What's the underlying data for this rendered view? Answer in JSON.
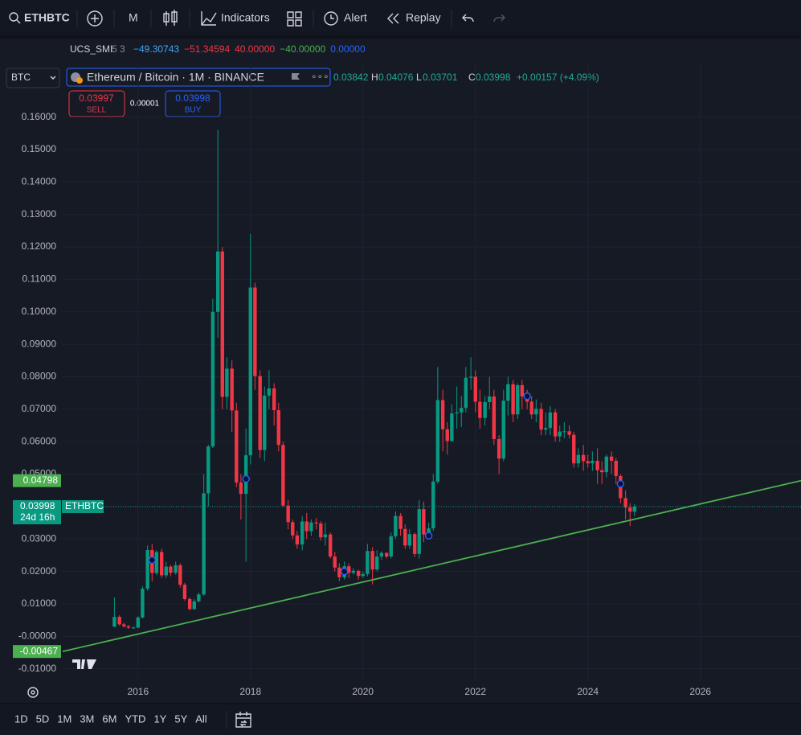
{
  "toolbar": {
    "symbol": "ETHBTC",
    "interval": "M",
    "indicators": "Indicators",
    "alert": "Alert",
    "replay": "Replay"
  },
  "indicator": {
    "name": "UCS_SMI",
    "params": "5 3",
    "values": [
      "−49.30743",
      "−51.34594",
      "40.00000",
      "−40.00000",
      "0.00000"
    ],
    "colors": [
      "#42a5f5",
      "#f23645",
      "#f23645",
      "#4caf50",
      "#2962ff"
    ]
  },
  "symbol_row": {
    "currency": "BTC",
    "title": "Ethereum / Bitcoin · 1M · BINANCE",
    "open": "0.03842",
    "high_label": "H",
    "high": "0.04076",
    "low_label": "L",
    "low": "0.03701",
    "close_label": "C",
    "close": "0.03998",
    "change": "+0.00157 (+4.09%)"
  },
  "trade": {
    "sell_price": "0.03997",
    "sell": "SELL",
    "spread": "0.00001",
    "buy_price": "0.03998",
    "buy": "BUY"
  },
  "chart_data": {
    "type": "candlestick",
    "x": [
      2015.58,
      2015.67,
      2015.75,
      2015.83,
      2015.92,
      2016.0,
      2016.08,
      2016.17,
      2016.25,
      2016.33,
      2016.42,
      2016.5,
      2016.58,
      2016.67,
      2016.75,
      2016.83,
      2016.92,
      2017.0,
      2017.08,
      2017.17,
      2017.25,
      2017.33,
      2017.42,
      2017.5,
      2017.58,
      2017.67,
      2017.75,
      2017.83,
      2017.92,
      2018.0,
      2018.08,
      2018.17,
      2018.25,
      2018.33,
      2018.42,
      2018.5,
      2018.58,
      2018.67,
      2018.75,
      2018.83,
      2018.92,
      2019.0,
      2019.08,
      2019.17,
      2019.25,
      2019.33,
      2019.42,
      2019.5,
      2019.58,
      2019.67,
      2019.75,
      2019.83,
      2019.92,
      2020.0,
      2020.08,
      2020.17,
      2020.25,
      2020.33,
      2020.42,
      2020.5,
      2020.58,
      2020.67,
      2020.75,
      2020.83,
      2020.92,
      2021.0,
      2021.08,
      2021.17,
      2021.25,
      2021.33,
      2021.42,
      2021.5,
      2021.58,
      2021.67,
      2021.75,
      2021.83,
      2021.92,
      2022.0,
      2022.08,
      2022.17,
      2022.25,
      2022.33,
      2022.42,
      2022.5,
      2022.58,
      2022.67,
      2022.75,
      2022.83,
      2022.92,
      2023.0,
      2023.08,
      2023.17,
      2023.25,
      2023.33,
      2023.42,
      2023.5,
      2023.58,
      2023.67,
      2023.75,
      2023.83,
      2023.92,
      2024.0,
      2024.08,
      2024.17,
      2024.25,
      2024.33,
      2024.42,
      2024.5,
      2024.58,
      2024.67,
      2024.75,
      2024.83
    ],
    "open": [
      0.003,
      0.006,
      0.0037,
      0.0031,
      0.0027,
      0.0027,
      0.0058,
      0.0147,
      0.0266,
      0.0195,
      0.026,
      0.0188,
      0.0215,
      0.0196,
      0.0219,
      0.0159,
      0.0115,
      0.0084,
      0.0108,
      0.0129,
      0.0441,
      0.0585,
      0.1,
      0.1186,
      0.0738,
      0.0825,
      0.0696,
      0.0474,
      0.0439,
      0.0558,
      0.1075,
      0.0802,
      0.0574,
      0.0742,
      0.0764,
      0.0697,
      0.059,
      0.0403,
      0.0352,
      0.0311,
      0.0283,
      0.0354,
      0.0324,
      0.0351,
      0.0348,
      0.0305,
      0.0314,
      0.0246,
      0.0212,
      0.0182,
      0.0216,
      0.0196,
      0.0202,
      0.0186,
      0.0192,
      0.0263,
      0.0206,
      0.0246,
      0.0257,
      0.0246,
      0.0308,
      0.0371,
      0.0331,
      0.028,
      0.0315,
      0.0254,
      0.0392,
      0.0314,
      0.0333,
      0.0477,
      0.0728,
      0.0638,
      0.0602,
      0.0687,
      0.069,
      0.0704,
      0.0797,
      0.08,
      0.0723,
      0.0673,
      0.0722,
      0.0739,
      0.0608,
      0.0548,
      0.0726,
      0.0777,
      0.0684,
      0.0774,
      0.0739,
      0.0723,
      0.0684,
      0.0701,
      0.0637,
      0.0642,
      0.069,
      0.0616,
      0.0631,
      0.0632,
      0.0621,
      0.0533,
      0.0559,
      0.054,
      0.0533,
      0.0541,
      0.0512,
      0.0506,
      0.0554,
      0.0541,
      0.0494,
      0.0426,
      0.0397,
      0.03842
    ],
    "high": [
      0.012,
      0.0065,
      0.0042,
      0.0035,
      0.0031,
      0.0062,
      0.0155,
      0.028,
      0.0285,
      0.0265,
      0.027,
      0.023,
      0.022,
      0.023,
      0.0225,
      0.0165,
      0.012,
      0.0115,
      0.0135,
      0.05,
      0.059,
      0.104,
      0.156,
      0.12,
      0.086,
      0.085,
      0.072,
      0.05,
      0.064,
      0.124,
      0.109,
      0.082,
      0.077,
      0.082,
      0.078,
      0.072,
      0.06,
      0.042,
      0.036,
      0.0325,
      0.037,
      0.038,
      0.036,
      0.0365,
      0.0355,
      0.035,
      0.032,
      0.026,
      0.0225,
      0.023,
      0.0225,
      0.021,
      0.0205,
      0.02,
      0.0285,
      0.0275,
      0.0265,
      0.0262,
      0.026,
      0.032,
      0.0385,
      0.038,
      0.0345,
      0.033,
      0.032,
      0.042,
      0.0415,
      0.035,
      0.05,
      0.083,
      0.076,
      0.066,
      0.0715,
      0.077,
      0.074,
      0.083,
      0.086,
      0.082,
      0.076,
      0.074,
      0.08,
      0.076,
      0.062,
      0.076,
      0.08,
      0.079,
      0.078,
      0.079,
      0.076,
      0.074,
      0.073,
      0.072,
      0.069,
      0.071,
      0.07,
      0.065,
      0.066,
      0.065,
      0.063,
      0.058,
      0.059,
      0.056,
      0.057,
      0.058,
      0.054,
      0.056,
      0.057,
      0.055,
      0.05,
      0.045,
      0.041,
      0.04076
    ],
    "low": [
      0.0028,
      0.0033,
      0.0027,
      0.0023,
      0.0023,
      0.0025,
      0.0055,
      0.014,
      0.017,
      0.019,
      0.018,
      0.018,
      0.0185,
      0.019,
      0.015,
      0.011,
      0.008,
      0.0082,
      0.0105,
      0.0125,
      0.04,
      0.058,
      0.092,
      0.07,
      0.07,
      0.063,
      0.046,
      0.036,
      0.023,
      0.053,
      0.076,
      0.055,
      0.054,
      0.07,
      0.065,
      0.057,
      0.04,
      0.033,
      0.03,
      0.027,
      0.0265,
      0.03,
      0.031,
      0.033,
      0.0295,
      0.028,
      0.024,
      0.02,
      0.017,
      0.0175,
      0.018,
      0.019,
      0.0175,
      0.018,
      0.0185,
      0.016,
      0.02,
      0.0235,
      0.024,
      0.024,
      0.03,
      0.031,
      0.027,
      0.027,
      0.0245,
      0.024,
      0.029,
      0.03,
      0.0325,
      0.047,
      0.057,
      0.056,
      0.06,
      0.064,
      0.0645,
      0.069,
      0.076,
      0.069,
      0.064,
      0.065,
      0.07,
      0.059,
      0.05,
      0.054,
      0.068,
      0.066,
      0.067,
      0.07,
      0.07,
      0.067,
      0.066,
      0.062,
      0.062,
      0.062,
      0.06,
      0.06,
      0.061,
      0.061,
      0.052,
      0.052,
      0.051,
      0.052,
      0.051,
      0.047,
      0.047,
      0.049,
      0.05,
      0.047,
      0.041,
      0.036,
      0.034,
      0.03701
    ],
    "close": [
      0.006,
      0.0037,
      0.0031,
      0.0027,
      0.0027,
      0.0058,
      0.0147,
      0.0266,
      0.0195,
      0.026,
      0.0188,
      0.0215,
      0.0196,
      0.0219,
      0.0159,
      0.0115,
      0.0084,
      0.0108,
      0.0129,
      0.0441,
      0.0585,
      0.1,
      0.1186,
      0.0738,
      0.0825,
      0.0696,
      0.0474,
      0.0439,
      0.0558,
      0.1075,
      0.0802,
      0.0574,
      0.0742,
      0.0764,
      0.0697,
      0.059,
      0.0403,
      0.0352,
      0.0311,
      0.0283,
      0.0354,
      0.0324,
      0.0351,
      0.0348,
      0.0305,
      0.0314,
      0.0246,
      0.0212,
      0.0182,
      0.0216,
      0.0196,
      0.0202,
      0.0186,
      0.0192,
      0.0263,
      0.0206,
      0.0246,
      0.0257,
      0.0246,
      0.0308,
      0.0371,
      0.0331,
      0.028,
      0.0315,
      0.0254,
      0.0392,
      0.0314,
      0.0333,
      0.0477,
      0.0728,
      0.0638,
      0.0602,
      0.0687,
      0.069,
      0.0704,
      0.0797,
      0.08,
      0.0723,
      0.0673,
      0.0722,
      0.0739,
      0.0608,
      0.0548,
      0.0726,
      0.0777,
      0.0684,
      0.0774,
      0.0739,
      0.0723,
      0.0684,
      0.0701,
      0.0637,
      0.0642,
      0.069,
      0.0616,
      0.0631,
      0.0632,
      0.0621,
      0.0533,
      0.0559,
      0.054,
      0.0533,
      0.0541,
      0.0512,
      0.0506,
      0.0554,
      0.0541,
      0.0494,
      0.0426,
      0.0397,
      0.03842,
      0.03998
    ],
    "up_color": "#089981",
    "down_color": "#f23645",
    "xlim": [
      2014.66,
      2027.79
    ],
    "xticks": [
      2016,
      2018,
      2020,
      2022,
      2024,
      2026
    ],
    "ylim": [
      -0.0133,
      0.1842
    ],
    "yticks": [
      {
        "value": 0.16,
        "label": "0.16000"
      },
      {
        "value": 0.15,
        "label": "0.15000"
      },
      {
        "value": 0.14,
        "label": "0.14000"
      },
      {
        "value": 0.13,
        "label": "0.13000"
      },
      {
        "value": 0.12,
        "label": "0.12000"
      },
      {
        "value": 0.11,
        "label": "0.11000"
      },
      {
        "value": 0.1,
        "label": "0.10000"
      },
      {
        "value": 0.09,
        "label": "0.09000"
      },
      {
        "value": 0.08,
        "label": "0.08000"
      },
      {
        "value": 0.07,
        "label": "0.07000"
      },
      {
        "value": 0.06,
        "label": "0.06000"
      },
      {
        "value": 0.05,
        "label": "0.05000"
      },
      {
        "value": 0.04,
        "label": "0.04000"
      },
      {
        "value": 0.03,
        "label": "0.03000"
      },
      {
        "value": 0.02,
        "label": "0.02000"
      },
      {
        "value": 0.01,
        "label": "0.01000"
      },
      {
        "value": 0,
        "label": "-0.00000"
      },
      {
        "value": -0.01,
        "label": "-0.01000"
      }
    ],
    "grid": true,
    "trendline": {
      "x": [
        2014.66,
        2027.79
      ],
      "y": [
        -0.00467,
        0.04798
      ],
      "color": "#4caf50"
    },
    "signals": {
      "x": [
        2016.25,
        2017.92,
        2019.67,
        2021.17,
        2022.92,
        2024.58
      ],
      "y": [
        0.0235,
        0.0485,
        0.02,
        0.031,
        0.074,
        0.047
      ]
    },
    "last_price": 0.03998,
    "last_symbol": "ETHBTC",
    "countdown": "24d 16h"
  },
  "timeframes": [
    "1D",
    "5D",
    "1M",
    "3M",
    "6M",
    "YTD",
    "1Y",
    "5Y",
    "All"
  ]
}
